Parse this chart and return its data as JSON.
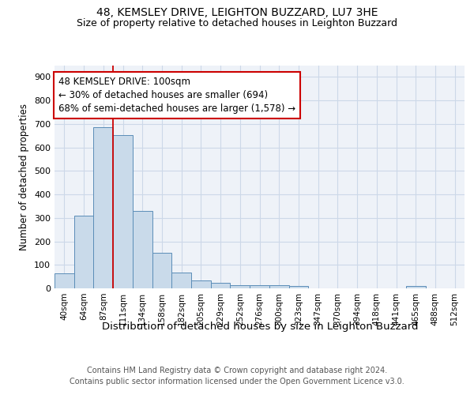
{
  "title1": "48, KEMSLEY DRIVE, LEIGHTON BUZZARD, LU7 3HE",
  "title2": "Size of property relative to detached houses in Leighton Buzzard",
  "xlabel": "Distribution of detached houses by size in Leighton Buzzard",
  "ylabel": "Number of detached properties",
  "bar_values": [
    65,
    310,
    687,
    652,
    328,
    150,
    68,
    35,
    22,
    15,
    12,
    12,
    10,
    0,
    0,
    0,
    0,
    0,
    10,
    0,
    0
  ],
  "bar_labels": [
    "40sqm",
    "64sqm",
    "87sqm",
    "111sqm",
    "134sqm",
    "158sqm",
    "182sqm",
    "205sqm",
    "229sqm",
    "252sqm",
    "276sqm",
    "300sqm",
    "323sqm",
    "347sqm",
    "370sqm",
    "394sqm",
    "418sqm",
    "441sqm",
    "465sqm",
    "488sqm",
    "512sqm"
  ],
  "bar_color": "#c9daea",
  "bar_edgecolor": "#5b8db8",
  "property_line_color": "#cc0000",
  "annotation_text": "48 KEMSLEY DRIVE: 100sqm\n← 30% of detached houses are smaller (694)\n68% of semi-detached houses are larger (1,578) →",
  "ylim_max": 950,
  "yticks": [
    0,
    100,
    200,
    300,
    400,
    500,
    600,
    700,
    800,
    900
  ],
  "grid_color": "#ccd8e8",
  "bg_color": "#eef2f8",
  "footer_line1": "Contains HM Land Registry data © Crown copyright and database right 2024.",
  "footer_line2": "Contains public sector information licensed under the Open Government Licence v3.0.",
  "title1_fontsize": 10,
  "title2_fontsize": 9,
  "xlabel_fontsize": 9.5,
  "ylabel_fontsize": 8.5,
  "annot_fontsize": 8.5,
  "tick_fontsize": 7.5,
  "footer_fontsize": 7
}
